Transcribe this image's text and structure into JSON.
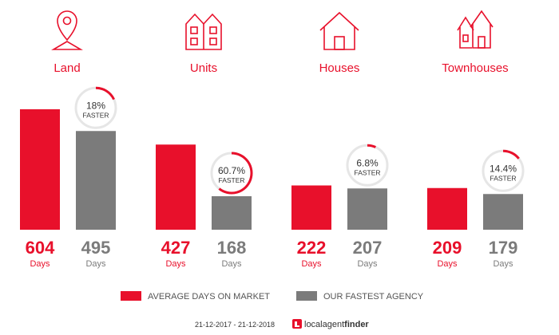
{
  "chart_data": {
    "type": "bar",
    "categories": [
      "Land",
      "Units",
      "Houses",
      "Townhouses"
    ],
    "series": [
      {
        "name": "AVERAGE DAYS ON MARKET",
        "values": [
          604,
          427,
          222,
          209
        ],
        "color": "#e8102b"
      },
      {
        "name": "OUR FASTEST AGENCY",
        "values": [
          495,
          168,
          207,
          179
        ],
        "color": "#7b7b7b"
      }
    ],
    "unit_label": "Days",
    "faster": [
      {
        "text": "18%",
        "fraction": 0.18
      },
      {
        "text": "60.7%",
        "fraction": 0.607
      },
      {
        "text": "6.8%",
        "fraction": 0.068
      },
      {
        "text": "14.4%",
        "fraction": 0.144
      }
    ],
    "faster_label": "FASTER",
    "icons": [
      "map-pin-icon",
      "units-building-icon",
      "house-icon",
      "townhouses-icon"
    ],
    "ylim": [
      0,
      604
    ],
    "legend_position": "bottom"
  },
  "footer": {
    "date_range": "21-12-2017 - 21-12-2018",
    "logo_light": "localagent",
    "logo_bold": "finder"
  }
}
